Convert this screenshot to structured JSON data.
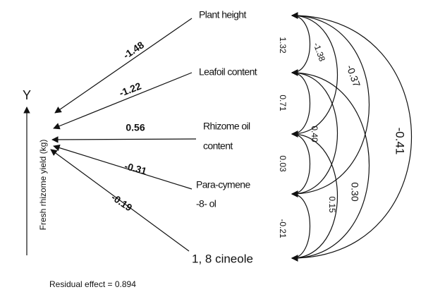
{
  "dependent": {
    "symbol": "Y",
    "label": "Fresh rhizome yield (kg)"
  },
  "nodes": [
    {
      "label": [
        "Plant height"
      ],
      "direct_effect": "-1.48"
    },
    {
      "label": [
        "Leafoil content"
      ],
      "direct_effect": "-1.22"
    },
    {
      "label": [
        "Rhizome oil",
        "content"
      ],
      "direct_effect": "0.56"
    },
    {
      "label": [
        "Para-cymene",
        "-8- ol"
      ],
      "direct_effect": "-0.31"
    },
    {
      "label": [
        "1, 8 cineole"
      ],
      "direct_effect": "-0.19"
    }
  ],
  "correlations": [
    {
      "from": 0,
      "to": 1,
      "value": "1.32"
    },
    {
      "from": 0,
      "to": 2,
      "value": "-1.38"
    },
    {
      "from": 0,
      "to": 3,
      "value": "-0.37"
    },
    {
      "from": 0,
      "to": 4,
      "value": "-0.41"
    },
    {
      "from": 1,
      "to": 2,
      "value": "0.71"
    },
    {
      "from": 1,
      "to": 3,
      "value": "0.40"
    },
    {
      "from": 1,
      "to": 4,
      "value": "0.30"
    },
    {
      "from": 2,
      "to": 3,
      "value": "0.03"
    },
    {
      "from": 2,
      "to": 4,
      "value": "0.15"
    },
    {
      "from": 3,
      "to": 4,
      "value": "-0.21"
    }
  ],
  "footer": "Residual effect = 0.894"
}
